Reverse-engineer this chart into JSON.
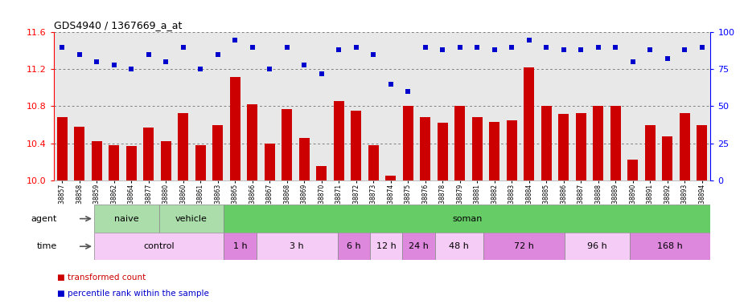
{
  "title": "GDS4940 / 1367669_a_at",
  "samples": [
    "GSM338857",
    "GSM338858",
    "GSM338859",
    "GSM338862",
    "GSM338864",
    "GSM338877",
    "GSM338880",
    "GSM338860",
    "GSM338861",
    "GSM338863",
    "GSM338865",
    "GSM338866",
    "GSM338867",
    "GSM338868",
    "GSM338869",
    "GSM338870",
    "GSM338871",
    "GSM338872",
    "GSM338873",
    "GSM338874",
    "GSM338875",
    "GSM338876",
    "GSM338878",
    "GSM338879",
    "GSM338881",
    "GSM338882",
    "GSM338883",
    "GSM338884",
    "GSM338885",
    "GSM338886",
    "GSM338887",
    "GSM338888",
    "GSM338889",
    "GSM338890",
    "GSM338891",
    "GSM338892",
    "GSM338893",
    "GSM338894"
  ],
  "bar_values": [
    10.68,
    10.58,
    10.42,
    10.38,
    10.37,
    10.57,
    10.42,
    10.73,
    10.38,
    10.6,
    11.12,
    10.82,
    10.4,
    10.77,
    10.46,
    10.15,
    10.86,
    10.75,
    10.38,
    10.05,
    10.8,
    10.68,
    10.62,
    10.8,
    10.68,
    10.63,
    10.65,
    11.22,
    10.8,
    10.72,
    10.73,
    10.8,
    10.8,
    10.22,
    10.6,
    10.47,
    10.73,
    10.6
  ],
  "blue_values": [
    90,
    85,
    80,
    78,
    75,
    85,
    80,
    90,
    75,
    85,
    95,
    90,
    75,
    90,
    78,
    72,
    88,
    90,
    85,
    65,
    60,
    90,
    88,
    90,
    90,
    88,
    90,
    95,
    90,
    88,
    88,
    90,
    90,
    80,
    88,
    82,
    88,
    90
  ],
  "ylim_left": [
    10.0,
    11.6
  ],
  "ylim_right": [
    0,
    100
  ],
  "yticks_left": [
    10.0,
    10.4,
    10.8,
    11.2,
    11.6
  ],
  "yticks_right": [
    0,
    25,
    50,
    75,
    100
  ],
  "bar_color": "#cc0000",
  "dot_color": "#0000cc",
  "plot_bg": "#e8e8e8",
  "agent_segments": [
    {
      "text": "naive",
      "start": 0,
      "end": 4,
      "color": "#aaddaa"
    },
    {
      "text": "vehicle",
      "start": 4,
      "end": 8,
      "color": "#aaddaa"
    },
    {
      "text": "soman",
      "start": 8,
      "end": 38,
      "color": "#66cc66"
    }
  ],
  "time_segments": [
    {
      "text": "control",
      "start": 0,
      "end": 8,
      "color": "#f5ccf5"
    },
    {
      "text": "1 h",
      "start": 8,
      "end": 10,
      "color": "#dd88dd"
    },
    {
      "text": "3 h",
      "start": 10,
      "end": 15,
      "color": "#f5ccf5"
    },
    {
      "text": "6 h",
      "start": 15,
      "end": 17,
      "color": "#dd88dd"
    },
    {
      "text": "12 h",
      "start": 17,
      "end": 19,
      "color": "#f5ccf5"
    },
    {
      "text": "24 h",
      "start": 19,
      "end": 21,
      "color": "#dd88dd"
    },
    {
      "text": "48 h",
      "start": 21,
      "end": 24,
      "color": "#f5ccf5"
    },
    {
      "text": "72 h",
      "start": 24,
      "end": 29,
      "color": "#dd88dd"
    },
    {
      "text": "96 h",
      "start": 29,
      "end": 33,
      "color": "#f5ccf5"
    },
    {
      "text": "168 h",
      "start": 33,
      "end": 38,
      "color": "#dd88dd"
    }
  ],
  "legend_items": [
    {
      "label": "transformed count",
      "color": "#cc0000"
    },
    {
      "label": "percentile rank within the sample",
      "color": "#0000cc"
    }
  ]
}
